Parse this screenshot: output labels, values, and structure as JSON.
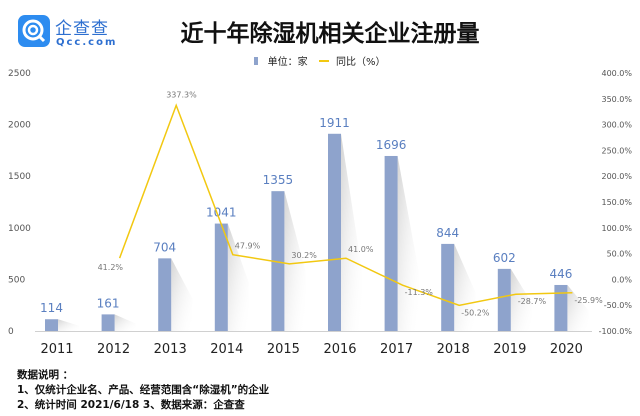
{
  "logo": {
    "cn": "企查查",
    "en": "Qcc.com"
  },
  "chart_data": {
    "type": "bar+line",
    "title": "近十年除湿机相关企业注册量",
    "categories": [
      "2011",
      "2012",
      "2013",
      "2014",
      "2015",
      "2016",
      "2017",
      "2018",
      "2019",
      "2020"
    ],
    "series": [
      {
        "name": "单位：家",
        "type": "bar",
        "axis": "left",
        "color": "#8ea3cc",
        "values": [
          114,
          161,
          704,
          1041,
          1355,
          1911,
          1696,
          844,
          602,
          446
        ]
      },
      {
        "name": "同比（%）",
        "type": "line",
        "axis": "right",
        "color": "#f2c811",
        "values": [
          null,
          41.2,
          337.3,
          47.9,
          30.2,
          41.0,
          -11.3,
          -50.2,
          -28.7,
          -25.9
        ],
        "labels": [
          "",
          "41.2%",
          "337.3%",
          "47.9%",
          "30.2%",
          "41.0%",
          "-11.3%",
          "-50.2%",
          "-28.7%",
          "-25.9%"
        ]
      }
    ],
    "left_axis": {
      "ylim": [
        0,
        2500
      ],
      "ticks": [
        "0",
        "500",
        "1000",
        "1500",
        "2000",
        "2500"
      ]
    },
    "right_axis": {
      "ylim": [
        -100,
        400
      ],
      "ticks": [
        "-100.0%",
        "-50.0%",
        "0.0%",
        "50.0%",
        "100.0%",
        "150.0%",
        "200.0%",
        "250.0%",
        "300.0%",
        "350.0%",
        "400.0%"
      ]
    },
    "grid": false,
    "legend": "top-center"
  },
  "notes": {
    "heading": "数据说明 ：",
    "line1": "1、仅统计企业名、产品、经营范围含“除湿机”的企业",
    "line2": "2、统计时间  2021/6/18      3、数据来源：企查查"
  }
}
